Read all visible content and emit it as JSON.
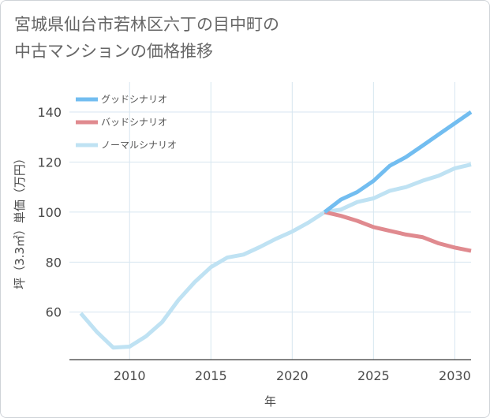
{
  "title_line1": "宮城県仙台市若林区六丁の目中町の",
  "title_line2": "中古マンションの価格推移",
  "chart_data": {
    "type": "line",
    "xlabel": "年",
    "ylabel": "坪（3.3㎡）単価（万円）",
    "xlim": [
      2006.3,
      2031
    ],
    "ylim": [
      41,
      152
    ],
    "xticks": [
      2010,
      2015,
      2020,
      2025,
      2030
    ],
    "yticks": [
      60,
      80,
      100,
      120,
      140
    ],
    "grid": true,
    "legend_position": "top-left",
    "series": [
      {
        "name": "グッドシナリオ",
        "color": "#72bdf0",
        "x": [
          2022,
          2023,
          2024,
          2025,
          2026,
          2027,
          2028,
          2029,
          2030,
          2031
        ],
        "y": [
          100,
          105,
          108,
          112.5,
          118.5,
          122,
          126.5,
          131,
          135.5,
          140
        ]
      },
      {
        "name": "バッドシナリオ",
        "color": "#e08a8f",
        "x": [
          2022,
          2023,
          2024,
          2025,
          2026,
          2027,
          2028,
          2029,
          2030,
          2031
        ],
        "y": [
          100,
          98.5,
          96.5,
          94,
          92.5,
          91,
          90,
          87.5,
          85.8,
          84.5
        ]
      },
      {
        "name": "ノーマルシナリオ",
        "color": "#bfe2f3",
        "x": [
          2007,
          2008,
          2009,
          2010,
          2011,
          2012,
          2013,
          2014,
          2015,
          2016,
          2017,
          2018,
          2019,
          2020,
          2021,
          2022,
          2023,
          2024,
          2025,
          2026,
          2027,
          2028,
          2029,
          2030,
          2031
        ],
        "y": [
          59.5,
          52,
          45.8,
          46.2,
          50.3,
          56,
          64.8,
          72,
          78,
          81.8,
          83,
          86,
          89.3,
          92.2,
          95.8,
          100,
          101,
          104,
          105.5,
          108.5,
          110,
          112.5,
          114.5,
          117.5,
          119
        ]
      }
    ]
  }
}
